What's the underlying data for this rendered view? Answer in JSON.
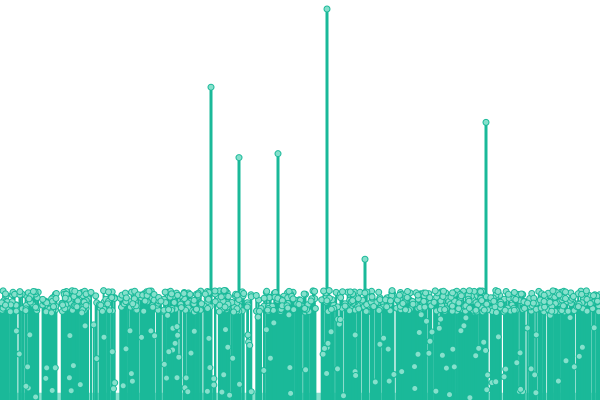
{
  "chart_data": {
    "type": "scatter",
    "style": "lollipop",
    "title": "",
    "xlabel": "",
    "ylabel": "",
    "grid": false,
    "legend": "none",
    "colors": {
      "stem": "#1ab999",
      "marker_fill": "#86e0cc",
      "marker_stroke": "#1ab999",
      "area": "#86e0cc"
    },
    "axes_visible": false,
    "baseline_band": {
      "y_range": [
        0.05,
        0.85
      ],
      "x_range": [
        0.5,
        600
      ]
    },
    "xlim": [
      0,
      600
    ],
    "ylim": [
      0,
      10
    ],
    "spikes": [
      {
        "x": 211,
        "y": 8.0
      },
      {
        "x": 239,
        "y": 6.2
      },
      {
        "x": 278,
        "y": 6.3
      },
      {
        "x": 327,
        "y": 10.0
      },
      {
        "x": 365,
        "y": 3.6
      },
      {
        "x": 486,
        "y": 7.1
      }
    ]
  }
}
